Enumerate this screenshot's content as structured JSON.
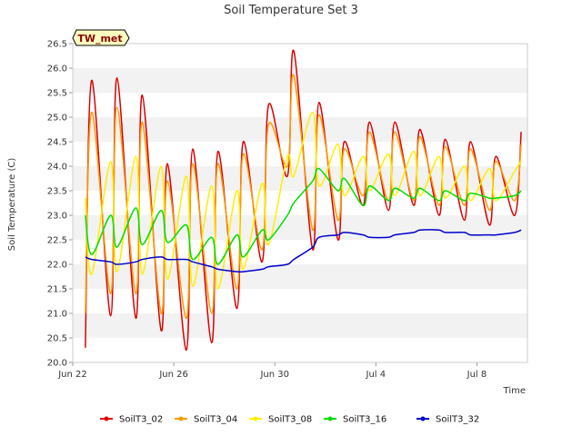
{
  "chart_data": {
    "type": "line",
    "title": "Soil Temperature Set 3",
    "xlabel": "Time",
    "ylabel": "Soil Temperature (C)",
    "badge": "TW_met",
    "ylim": [
      20.0,
      26.5
    ],
    "xlim": [
      "2024-06-22",
      "2024-07-10"
    ],
    "y_ticks": [
      20.0,
      20.5,
      21.0,
      21.5,
      22.0,
      22.5,
      23.0,
      23.5,
      24.0,
      24.5,
      25.0,
      25.5,
      26.0,
      26.5
    ],
    "x_ticks": [
      {
        "date": "2024-06-22",
        "label": "Jun 22"
      },
      {
        "date": "2024-06-26",
        "label": "Jun 26"
      },
      {
        "date": "2024-06-30",
        "label": "Jun 30"
      },
      {
        "date": "2024-07-04",
        "label": "Jul 4"
      },
      {
        "date": "2024-07-08",
        "label": "Jul 8"
      }
    ],
    "grid": true,
    "legend_position": "bottom",
    "x": [
      "2024-06-22 12:00",
      "2024-06-22 18:00",
      "2024-06-23 12:00",
      "2024-06-23 18:00",
      "2024-06-24 12:00",
      "2024-06-24 18:00",
      "2024-06-25 12:00",
      "2024-06-25 18:00",
      "2024-06-26 12:00",
      "2024-06-26 18:00",
      "2024-06-27 12:00",
      "2024-06-27 18:00",
      "2024-06-28 12:00",
      "2024-06-28 18:00",
      "2024-06-29 12:00",
      "2024-06-29 18:00",
      "2024-06-30 12:00",
      "2024-06-30 18:00",
      "2024-07-01 12:00",
      "2024-07-01 18:00",
      "2024-07-02 12:00",
      "2024-07-02 18:00",
      "2024-07-03 12:00",
      "2024-07-03 18:00",
      "2024-07-04 12:00",
      "2024-07-04 18:00",
      "2024-07-05 12:00",
      "2024-07-05 18:00",
      "2024-07-06 12:00",
      "2024-07-06 18:00",
      "2024-07-07 12:00",
      "2024-07-07 18:00",
      "2024-07-08 12:00",
      "2024-07-08 18:00",
      "2024-07-09 12:00",
      "2024-07-09 18:00"
    ],
    "series": [
      {
        "name": "SoilT3_02",
        "color": "#dd0000",
        "values": [
          20.3,
          25.75,
          20.95,
          25.8,
          20.9,
          25.45,
          20.65,
          24.05,
          20.25,
          24.35,
          20.4,
          24.3,
          21.1,
          24.5,
          22.05,
          25.25,
          23.8,
          26.35,
          22.3,
          25.3,
          22.5,
          24.5,
          23.2,
          24.9,
          23.1,
          24.9,
          23.2,
          24.75,
          23.0,
          24.55,
          22.9,
          24.5,
          22.8,
          24.2,
          23.0,
          24.7
        ]
      },
      {
        "name": "SoilT3_04",
        "color": "#ff9900",
        "values": [
          21.0,
          25.1,
          21.4,
          25.2,
          21.4,
          24.9,
          21.0,
          23.7,
          20.9,
          24.05,
          21.0,
          24.05,
          21.5,
          24.25,
          22.3,
          24.85,
          24.0,
          25.85,
          22.7,
          25.05,
          22.9,
          24.35,
          23.4,
          24.7,
          23.3,
          24.7,
          23.3,
          24.6,
          23.2,
          24.4,
          23.2,
          24.35,
          23.1,
          24.1,
          23.3,
          24.45
        ]
      },
      {
        "name": "SoilT3_08",
        "color": "#ffee00",
        "values": [
          23.35,
          21.8,
          24.1,
          21.85,
          24.2,
          21.8,
          24.0,
          21.7,
          23.8,
          21.55,
          23.6,
          21.5,
          23.5,
          21.9,
          23.65,
          22.4,
          24.2,
          23.8,
          25.1,
          23.6,
          24.45,
          23.4,
          24.2,
          23.5,
          24.25,
          23.4,
          24.3,
          23.4,
          24.2,
          23.35,
          24.0,
          23.3,
          23.95,
          23.3,
          23.9,
          24.1
        ]
      },
      {
        "name": "SoilT3_16",
        "color": "#00dd00",
        "values": [
          23.0,
          22.2,
          23.0,
          22.35,
          23.15,
          22.4,
          23.1,
          22.45,
          22.8,
          22.1,
          22.55,
          22.0,
          22.6,
          22.15,
          22.7,
          22.5,
          23.0,
          23.25,
          23.7,
          23.95,
          23.5,
          23.75,
          23.2,
          23.6,
          23.3,
          23.55,
          23.35,
          23.55,
          23.3,
          23.5,
          23.3,
          23.45,
          23.35,
          23.35,
          23.4,
          23.5
        ]
      },
      {
        "name": "SoilT3_32",
        "color": "#0000cc",
        "values": [
          22.15,
          22.1,
          22.05,
          22.0,
          22.05,
          22.1,
          22.15,
          22.1,
          22.1,
          22.05,
          21.95,
          21.9,
          21.85,
          21.85,
          21.9,
          21.95,
          22.0,
          22.1,
          22.35,
          22.55,
          22.6,
          22.65,
          22.6,
          22.55,
          22.55,
          22.6,
          22.65,
          22.7,
          22.7,
          22.65,
          22.65,
          22.6,
          22.6,
          22.6,
          22.65,
          22.7
        ]
      }
    ]
  }
}
